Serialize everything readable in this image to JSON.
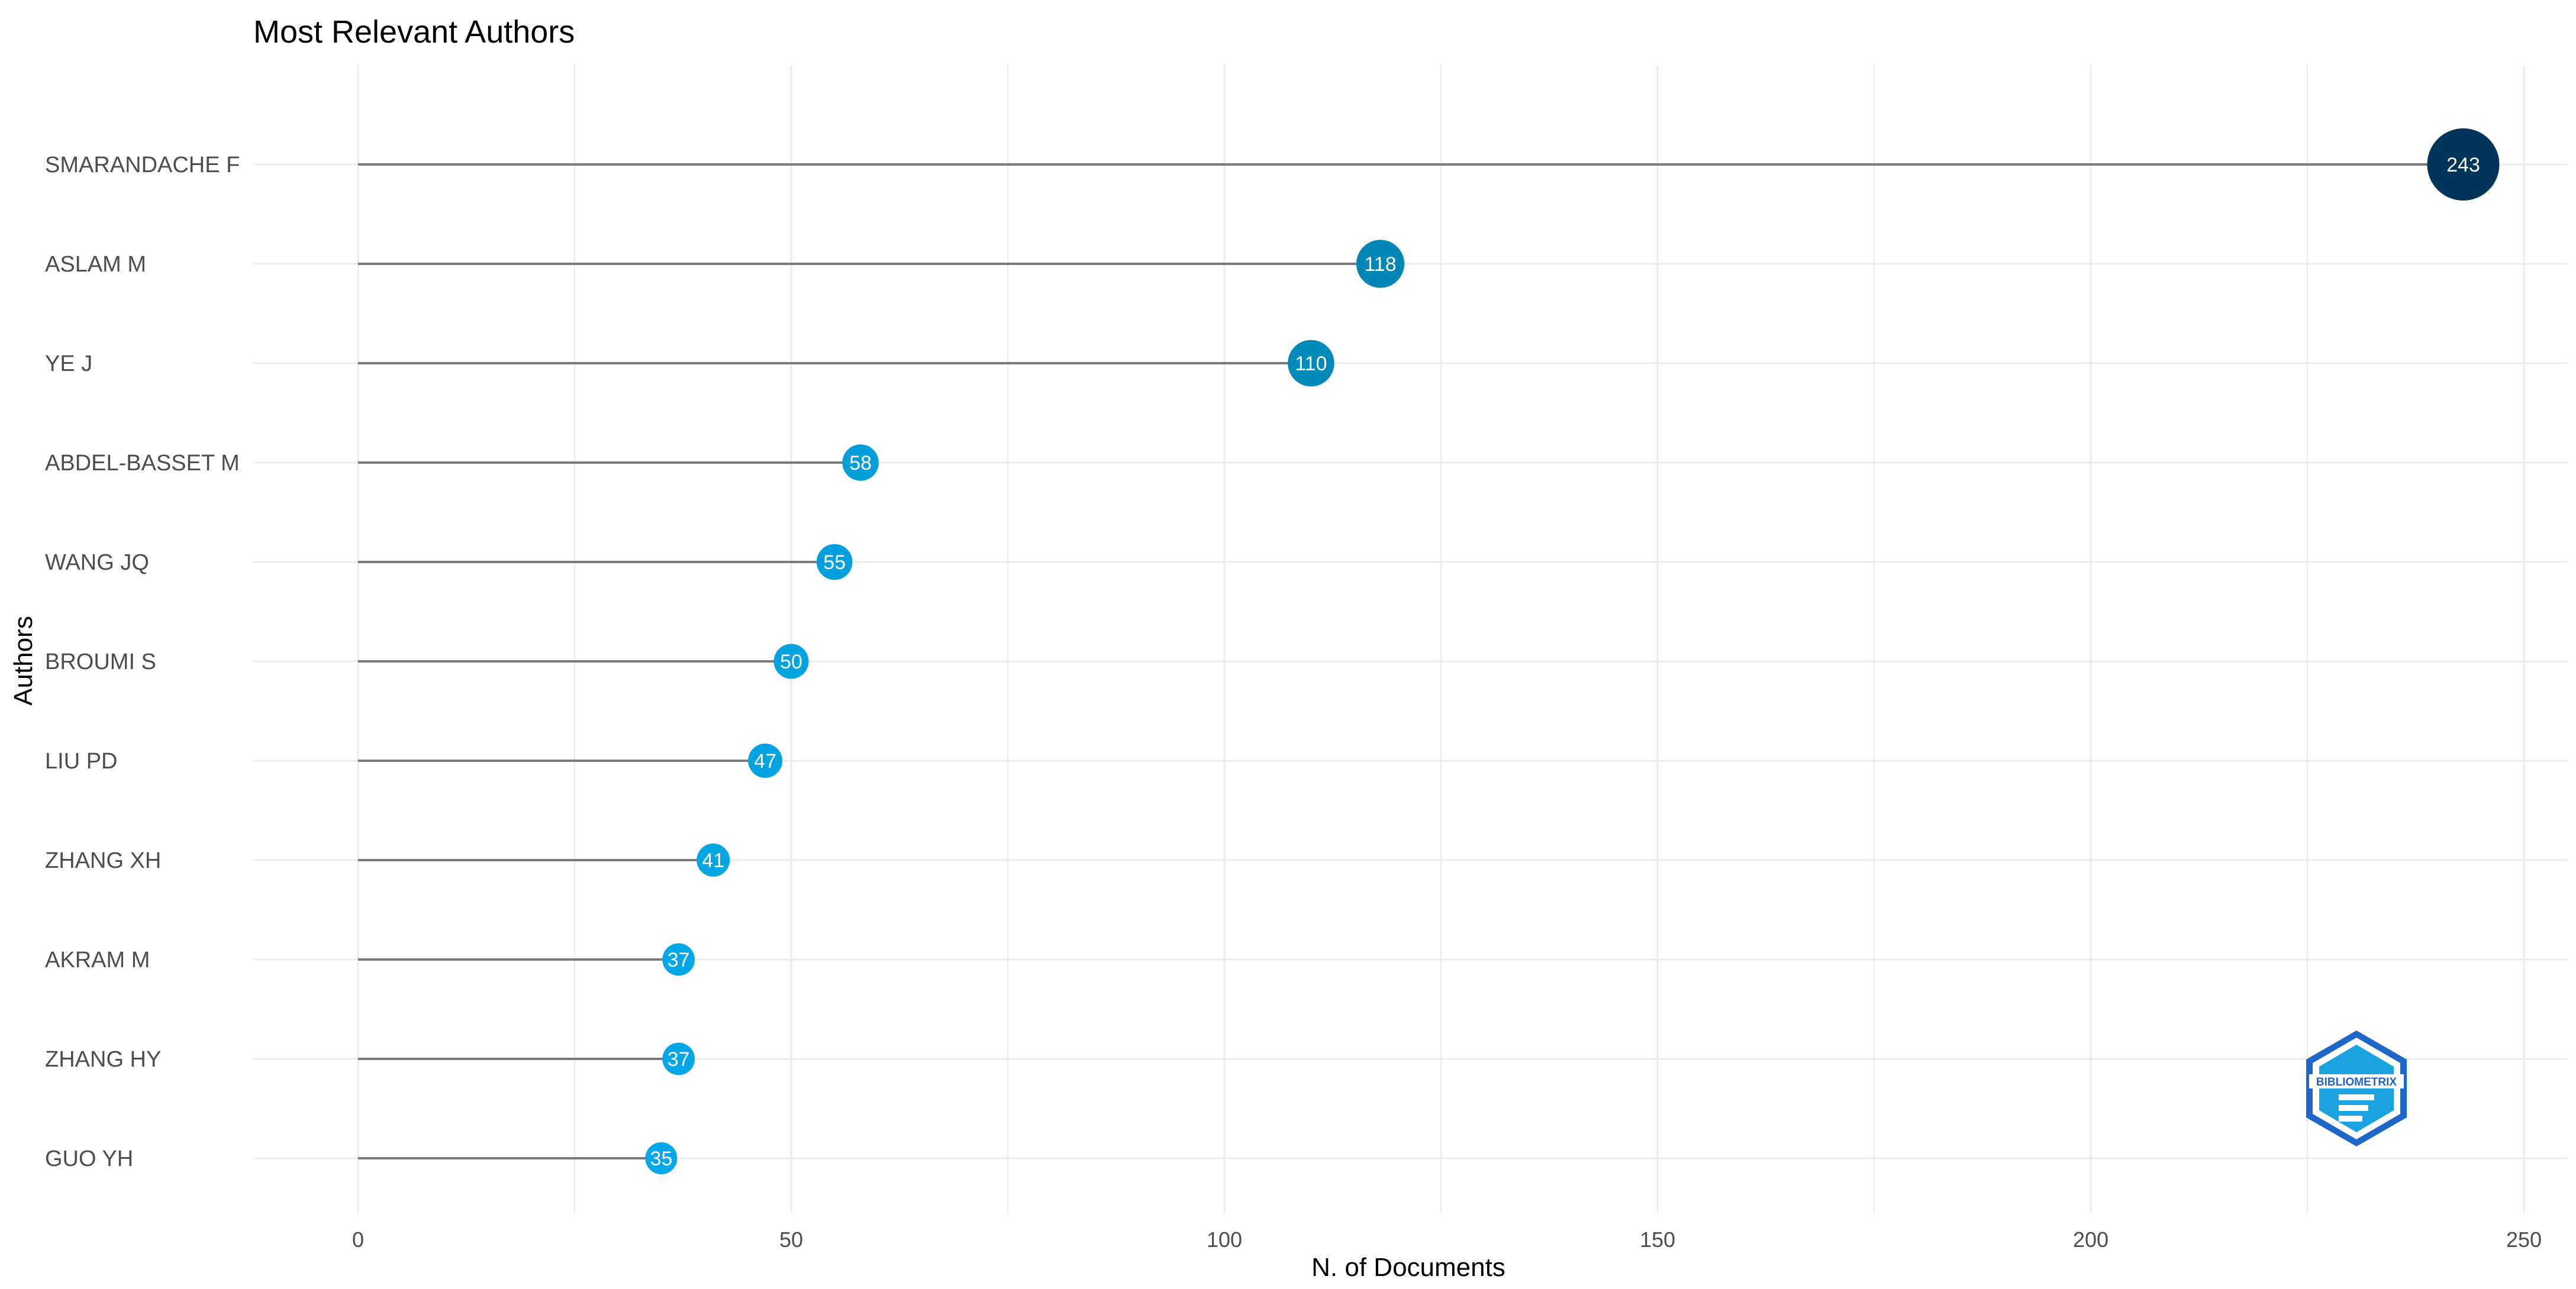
{
  "chart_data": {
    "type": "lollipop",
    "title": "Most Relevant Authors",
    "xlabel": "N. of Documents",
    "ylabel": "Authors",
    "xlim": [
      0,
      250
    ],
    "x_ticks": [
      0,
      50,
      100,
      150,
      200,
      250
    ],
    "grid": true,
    "categories": [
      "SMARANDACHE F",
      "ASLAM M",
      "YE J",
      "ABDEL-BASSET M",
      "WANG JQ",
      "BROUMI S",
      "LIU PD",
      "ZHANG XH",
      "AKRAM M",
      "ZHANG HY",
      "GUO YH"
    ],
    "values": [
      243,
      118,
      110,
      58,
      55,
      50,
      47,
      41,
      37,
      37,
      35
    ],
    "color_scale": {
      "low": "#00A8E8",
      "mid": "#007EA7",
      "high": "#003459"
    }
  },
  "logo": {
    "text": "BIBLIOMETRIX",
    "icon": "bibliometrix-hexagon-logo"
  }
}
